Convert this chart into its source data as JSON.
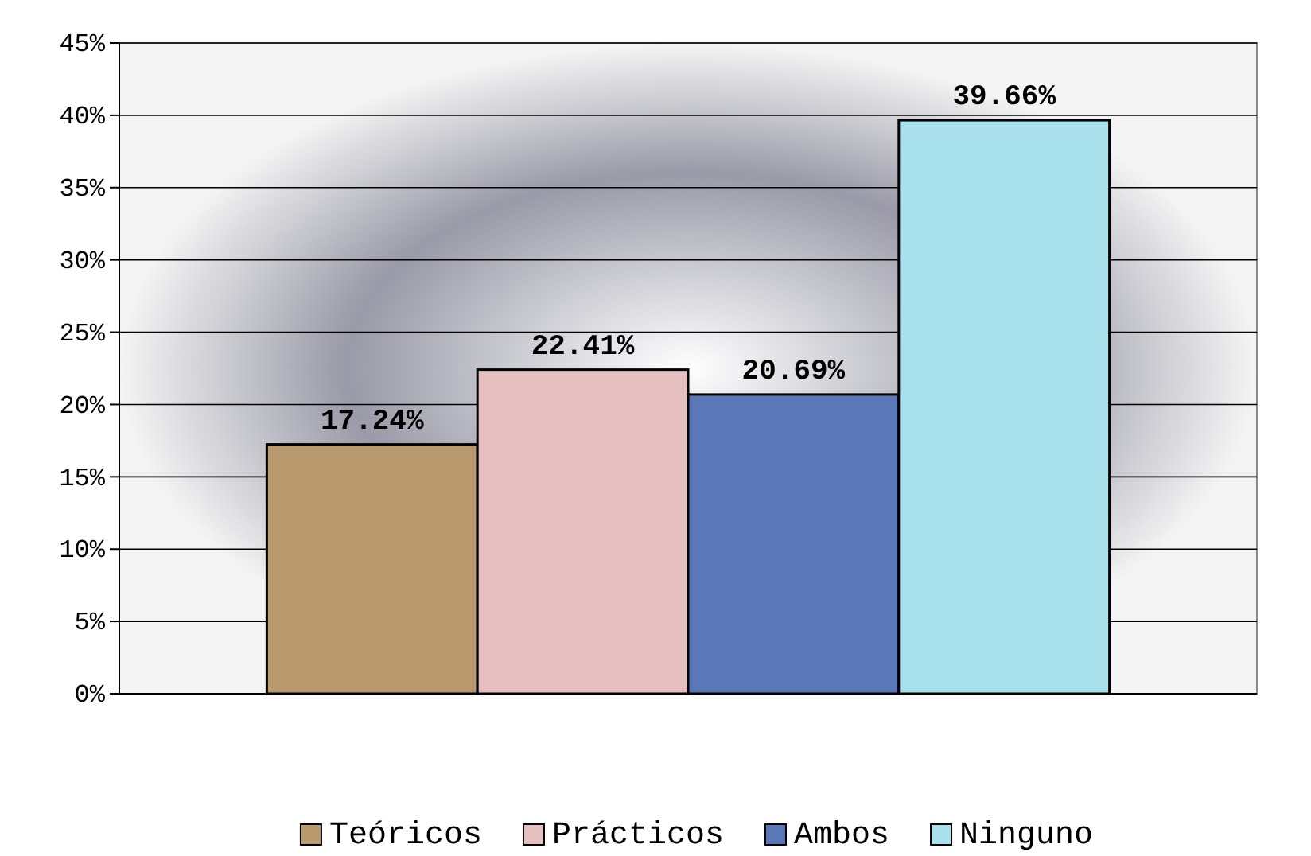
{
  "chart_data": {
    "type": "bar",
    "categories": [
      null
    ],
    "series": [
      {
        "name": "Teóricos",
        "color": "#b89a6e",
        "values": [
          17.24
        ]
      },
      {
        "name": "Prácticos",
        "color": "#e6c0c0",
        "values": [
          22.41
        ]
      },
      {
        "name": "Ambos",
        "color": "#5a78b8",
        "values": [
          20.69
        ]
      },
      {
        "name": "Ninguno",
        "color": "#a8e0ec",
        "values": [
          39.66
        ]
      }
    ],
    "ylim": [
      0,
      45
    ],
    "yticks": [
      {
        "value": 0,
        "label": "0%"
      },
      {
        "value": 5,
        "label": "5%"
      },
      {
        "value": 10,
        "label": "10%"
      },
      {
        "value": 15,
        "label": "15%"
      },
      {
        "value": 20,
        "label": "20%"
      },
      {
        "value": 25,
        "label": "25%"
      },
      {
        "value": 30,
        "label": "30%"
      },
      {
        "value": 35,
        "label": "35%"
      },
      {
        "value": 40,
        "label": "40%"
      },
      {
        "value": 45,
        "label": "45%"
      }
    ],
    "value_labels": [
      "17.24%",
      "22.41%",
      "20.69%",
      "39.66%"
    ],
    "grid": "y",
    "legend": "bottom"
  }
}
